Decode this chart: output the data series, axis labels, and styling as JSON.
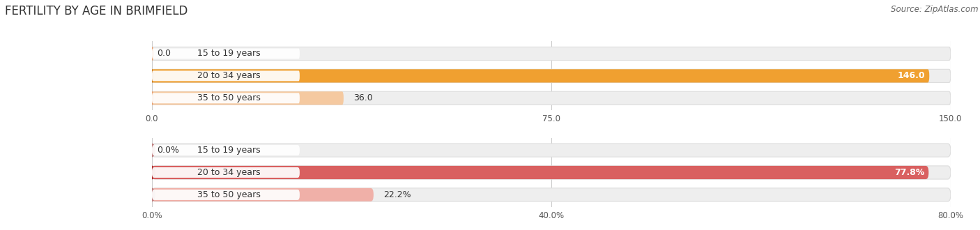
{
  "title": "FERTILITY BY AGE IN BRIMFIELD",
  "source": "Source: ZipAtlas.com",
  "top_chart": {
    "categories": [
      "15 to 19 years",
      "20 to 34 years",
      "35 to 50 years"
    ],
    "values": [
      0.0,
      146.0,
      36.0
    ],
    "max_value": 150.0,
    "x_ticks": [
      0.0,
      75.0,
      150.0
    ],
    "x_tick_labels": [
      "0.0",
      "75.0",
      "150.0"
    ],
    "bar_colors": [
      "#f5c9a0",
      "#f0a030",
      "#f5c9a0"
    ],
    "circle_colors": [
      "#e8a070",
      "#d08020",
      "#e8a070"
    ],
    "track_color": "#eeeeee",
    "track_edge_color": "#dddddd",
    "value_labels": [
      "0.0",
      "146.0",
      "36.0"
    ],
    "label_inside": [
      false,
      true,
      false
    ]
  },
  "bottom_chart": {
    "categories": [
      "15 to 19 years",
      "20 to 34 years",
      "35 to 50 years"
    ],
    "values": [
      0.0,
      77.8,
      22.2
    ],
    "max_value": 80.0,
    "x_ticks": [
      0.0,
      40.0,
      80.0
    ],
    "x_tick_labels": [
      "0.0%",
      "40.0%",
      "80.0%"
    ],
    "bar_colors": [
      "#f0b0a8",
      "#d96060",
      "#f0b0a8"
    ],
    "circle_colors": [
      "#c08080",
      "#b03030",
      "#c08080"
    ],
    "track_color": "#eeeeee",
    "track_edge_color": "#dddddd",
    "value_labels": [
      "0.0%",
      "77.8%",
      "22.2%"
    ],
    "label_inside": [
      false,
      true,
      false
    ]
  },
  "title_fontsize": 12,
  "source_fontsize": 8.5,
  "label_fontsize": 9,
  "tick_fontsize": 8.5,
  "bar_height": 0.6,
  "title_color": "#333333",
  "tick_color": "#555555",
  "source_color": "#666666",
  "label_color": "#333333",
  "grid_color": "#cccccc"
}
